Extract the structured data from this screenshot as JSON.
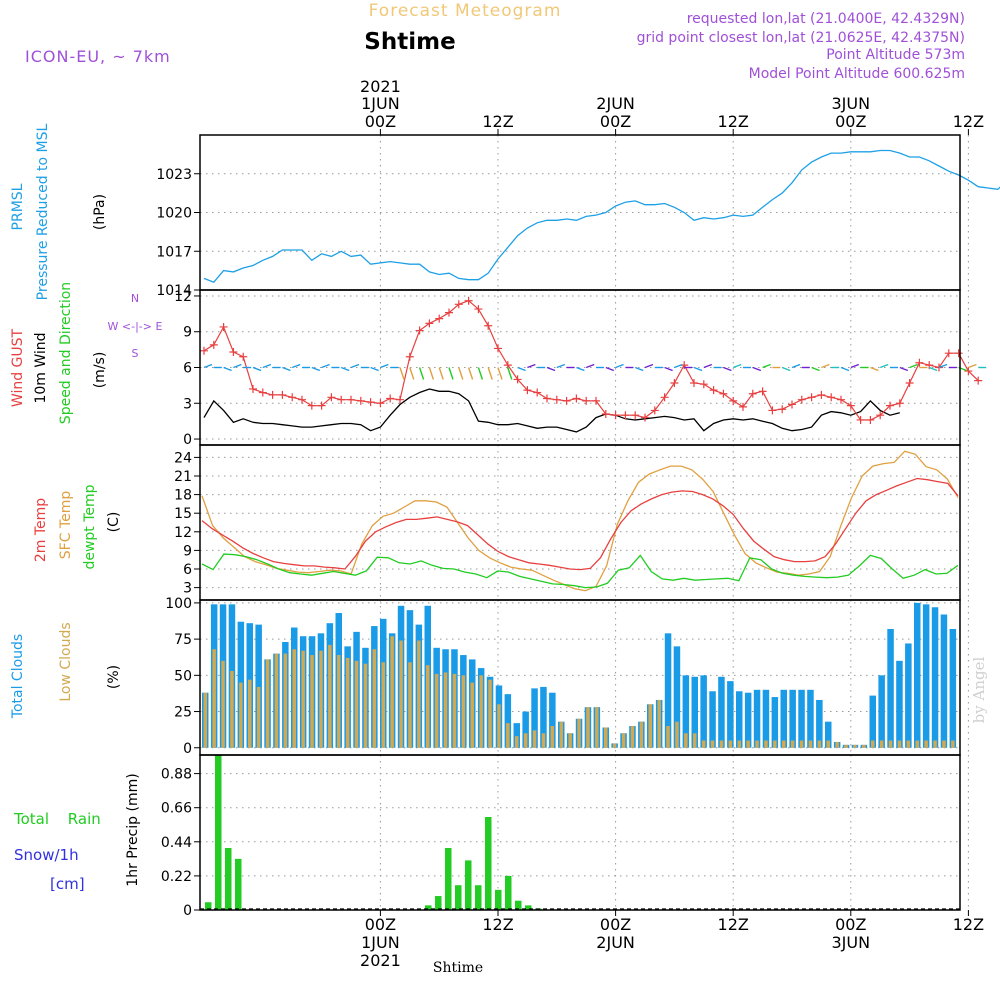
{
  "header": {
    "title_top": "Forecast Meteogram",
    "location": "Shtime",
    "model": "ICON-EU, ~ 7km",
    "requested": "requested lon,lat (21.0400E, 42.4329N)",
    "gridpoint": "grid point closest lon,lat (21.0625E, 42.4375N)",
    "point_alt": "Point Altitude 573m",
    "model_alt": "Model Point Altitude 600.625m",
    "footer": "Shtime",
    "watermark": "by Angel"
  },
  "colors": {
    "pressure": "#1ea0e6",
    "gust": "#e84040",
    "wind": "#000000",
    "sfc": "#e0a040",
    "dewpt": "#22cc22",
    "cloud_total": "#1a9be8",
    "cloud_low": "#d2a850",
    "rain": "#22cc22",
    "snow": "#3030e0",
    "header_purple": "#a050d8",
    "header_orange": "#f0c878"
  },
  "time_axis": {
    "top_labels": [
      {
        "label": "00Z",
        "day": "1JUN",
        "year": "2021",
        "idx": 18
      },
      {
        "label": "12Z",
        "idx": 30
      },
      {
        "label": "00Z",
        "day": "2JUN",
        "idx": 42
      },
      {
        "label": "12Z",
        "idx": 54
      },
      {
        "label": "00Z",
        "day": "3JUN",
        "idx": 66
      },
      {
        "label": "12Z",
        "idx": 78
      }
    ],
    "bottom_labels": [
      {
        "label": "00Z",
        "day": "1JUN",
        "year": "2021",
        "idx": 18
      },
      {
        "label": "12Z",
        "idx": 30
      },
      {
        "label": "00Z",
        "day": "2JUN",
        "idx": 42
      },
      {
        "label": "12Z",
        "idx": 54
      },
      {
        "label": "00Z",
        "day": "3JUN",
        "idx": 66
      },
      {
        "label": "12Z",
        "idx": 78
      }
    ]
  },
  "chart_data": [
    {
      "type": "line",
      "name": "pressure",
      "labels": {
        "title": "PRMSL",
        "subtitle": "Pressure Reduced to MSL",
        "unit": "(hPa)"
      },
      "ylim": [
        1014,
        1026
      ],
      "yticks": [
        1014,
        1017,
        1020,
        1023
      ],
      "values": [
        1014.9,
        1014.6,
        1015.5,
        1015.4,
        1015.7,
        1015.9,
        1016.3,
        1016.6,
        1017.1,
        1017.1,
        1017.1,
        1016.3,
        1016.8,
        1016.6,
        1017.0,
        1016.6,
        1016.7,
        1016.0,
        1016.1,
        1016.2,
        1016.1,
        1016.0,
        1016.0,
        1015.4,
        1015.2,
        1015.3,
        1014.9,
        1014.8,
        1014.8,
        1015.3,
        1016.4,
        1017.3,
        1018.2,
        1018.8,
        1019.2,
        1019.4,
        1019.4,
        1019.5,
        1019.4,
        1019.7,
        1019.8,
        1020.0,
        1020.5,
        1020.8,
        1020.9,
        1020.6,
        1020.6,
        1020.7,
        1020.4,
        1020.0,
        1019.4,
        1019.6,
        1019.5,
        1019.6,
        1019.8,
        1019.7,
        1019.8,
        1020.4,
        1021.0,
        1021.5,
        1022.3,
        1023.3,
        1023.9,
        1024.3,
        1024.6,
        1024.6,
        1024.7,
        1024.7,
        1024.7,
        1024.8,
        1024.8,
        1024.6,
        1024.3,
        1024.3,
        1024.0,
        1023.6,
        1023.2,
        1022.9,
        1022.5,
        1022.0,
        1021.9,
        1021.8,
        1022.5
      ]
    },
    {
      "type": "line",
      "name": "wind",
      "labels": {
        "gust": "Wind GUST",
        "wind": "10m Wind",
        "dir": "Speed and Direction",
        "unit": "(m/s)",
        "compass": "W <-|-> E",
        "compass_n": "N",
        "compass_s": "S"
      },
      "ylim": [
        -0.5,
        12.5
      ],
      "yticks": [
        0,
        3,
        6,
        9,
        12
      ],
      "gust": [
        7.4,
        7.9,
        9.4,
        7.3,
        6.9,
        4.2,
        3.9,
        3.7,
        3.7,
        3.5,
        3.3,
        2.8,
        2.8,
        3.5,
        3.3,
        3.3,
        3.2,
        3.1,
        3.0,
        3.4,
        3.3,
        6.9,
        9.1,
        9.7,
        10.1,
        10.6,
        11.3,
        11.6,
        10.9,
        9.5,
        7.6,
        6.2,
        5.0,
        4.1,
        3.9,
        3.4,
        3.3,
        3.2,
        3.4,
        3.2,
        3.2,
        2.1,
        2.0,
        2.0,
        2.0,
        1.8,
        2.4,
        3.5,
        4.7,
        6.2,
        4.7,
        4.6,
        4.1,
        3.8,
        3.2,
        2.7,
        3.8,
        4.0,
        2.4,
        2.5,
        2.9,
        3.3,
        3.5,
        3.7,
        3.5,
        3.3,
        2.8,
        1.6,
        1.6,
        2.0,
        2.8,
        3.0,
        4.7,
        6.4,
        6.2,
        6.0,
        7.2,
        7.2,
        5.7,
        4.9
      ],
      "speed": [
        1.8,
        3.2,
        2.4,
        1.4,
        1.7,
        1.4,
        1.3,
        1.3,
        1.2,
        1.1,
        1.0,
        1.0,
        1.1,
        1.2,
        1.3,
        1.3,
        1.2,
        0.7,
        1.0,
        2.0,
        2.9,
        3.5,
        3.9,
        4.2,
        4.0,
        4.0,
        3.8,
        3.2,
        1.5,
        1.4,
        1.2,
        1.2,
        1.3,
        1.1,
        0.9,
        1.0,
        1.0,
        0.8,
        0.6,
        1.0,
        1.8,
        2.1,
        2.0,
        1.7,
        1.6,
        1.7,
        1.8,
        1.9,
        1.8,
        1.6,
        1.7,
        0.7,
        1.3,
        1.6,
        1.7,
        1.6,
        1.7,
        1.5,
        1.3,
        0.9,
        0.7,
        0.8,
        1.0,
        2.0,
        2.3,
        2.2,
        2.0,
        2.3,
        3.2,
        2.4,
        2.0,
        2.2
      ]
    },
    {
      "type": "line",
      "name": "temperature",
      "labels": {
        "t2m": "2m Temp",
        "sfc": "SFC Temp",
        "dewpt": "dewpt Temp",
        "unit": "(C)"
      },
      "ylim": [
        1,
        26
      ],
      "yticks": [
        3,
        6,
        9,
        12,
        15,
        18,
        21,
        24
      ],
      "t2m": [
        13.8,
        12.5,
        11.5,
        10.5,
        9.4,
        8.5,
        7.8,
        7.2,
        6.9,
        6.7,
        6.5,
        6.5,
        6.3,
        6.2,
        6.0,
        8.0,
        10.5,
        12.0,
        12.8,
        13.5,
        14.0,
        14.0,
        14.2,
        14.4,
        14.0,
        13.6,
        13.0,
        11.5,
        10.0,
        8.8,
        8.0,
        7.5,
        7.0,
        6.8,
        6.6,
        6.3,
        6.0,
        5.9,
        6.1,
        7.8,
        10.8,
        13.5,
        15.4,
        16.5,
        17.3,
        18.0,
        18.4,
        18.6,
        18.5,
        18.0,
        17.3,
        16.2,
        14.8,
        12.5,
        10.5,
        9.2,
        8.0,
        7.5,
        7.2,
        7.2,
        7.3,
        8.0,
        10.0,
        12.5,
        15.0,
        17.0,
        18.0,
        18.7,
        19.4,
        20.0,
        20.6,
        20.4,
        20.1,
        19.8,
        17.8
      ],
      "sfc": [
        17.8,
        13.0,
        11.0,
        9.5,
        8.0,
        7.2,
        6.7,
        6.1,
        5.8,
        5.5,
        5.4,
        5.6,
        5.8,
        5.7,
        5.2,
        10.0,
        13.0,
        14.5,
        15.0,
        16.0,
        17.0,
        17.0,
        16.8,
        16.0,
        13.5,
        11.0,
        9.0,
        7.8,
        7.0,
        6.3,
        6.0,
        5.8,
        5.0,
        4.2,
        3.5,
        2.8,
        2.5,
        3.2,
        6.5,
        13.2,
        17.0,
        20.0,
        21.3,
        22.0,
        22.6,
        22.6,
        22.0,
        20.5,
        18.5,
        15.0,
        11.5,
        8.5,
        7.0,
        6.2,
        5.5,
        5.3,
        5.0,
        5.2,
        5.6,
        8.0,
        13.0,
        17.5,
        21.0,
        22.6,
        23.0,
        23.2,
        25.0,
        24.5,
        22.5,
        22.0,
        20.5,
        17.5
      ],
      "dewpt": [
        6.8,
        5.9,
        8.4,
        8.3,
        8.0,
        7.5,
        6.8,
        6.0,
        5.4,
        5.2,
        5.0,
        5.3,
        5.6,
        5.3,
        5.0,
        5.7,
        7.9,
        7.8,
        7.0,
        6.8,
        7.3,
        6.6,
        6.1,
        6.0,
        5.5,
        5.2,
        4.6,
        5.7,
        5.5,
        4.8,
        4.4,
        4.0,
        3.6,
        3.5,
        3.3,
        3.0,
        3.1,
        3.7,
        5.8,
        6.2,
        8.2,
        5.6,
        4.4,
        4.2,
        4.5,
        4.2,
        4.3,
        4.4,
        4.5,
        4.1,
        7.8,
        7.5,
        6.0,
        5.3,
        5.0,
        4.8,
        4.7,
        4.6,
        4.7,
        5.0,
        6.5,
        8.2,
        7.7,
        6.0,
        4.5,
        5.0,
        5.9,
        5.2,
        5.3,
        6.6
      ]
    },
    {
      "type": "bar",
      "name": "clouds",
      "labels": {
        "total": "Total Clouds",
        "low": "Low Clouds",
        "unit": "(%)"
      },
      "ylim": [
        -5,
        102
      ],
      "yticks": [
        0,
        25,
        50,
        75,
        100
      ],
      "total": [
        38,
        99,
        99,
        99,
        87,
        86,
        85,
        61,
        65,
        73,
        83,
        77,
        77,
        79,
        86,
        93,
        70,
        80,
        69,
        84,
        89,
        79,
        98,
        95,
        85,
        98,
        69,
        68,
        68,
        64,
        61,
        55,
        49,
        43,
        37,
        17,
        25,
        41,
        42,
        38,
        18,
        10,
        20,
        28,
        28,
        14,
        3,
        10,
        15,
        18,
        30,
        33,
        79,
        70,
        50,
        49,
        50,
        39,
        49,
        46,
        39,
        38,
        40,
        40,
        35,
        40,
        40,
        40,
        40,
        33,
        18,
        4,
        2,
        2,
        2,
        36,
        50,
        82,
        60,
        72,
        100,
        99,
        97,
        92,
        82
      ],
      "low": [
        38,
        68,
        60,
        53,
        45,
        47,
        42,
        65,
        73,
        65,
        68,
        67,
        64,
        67,
        71,
        64,
        62,
        60,
        58,
        68,
        59,
        77,
        74,
        59,
        74,
        57,
        51,
        52,
        51,
        50,
        45,
        50,
        47,
        30,
        17,
        8,
        10,
        12,
        10,
        15,
        18,
        10,
        20,
        28,
        28,
        14,
        3,
        10,
        15,
        18,
        30,
        33,
        15,
        18,
        10,
        10,
        5,
        5,
        5,
        5,
        5,
        5,
        5,
        5,
        5,
        5,
        5,
        5,
        5,
        5,
        5,
        5,
        5,
        5,
        5,
        5,
        5,
        5,
        5,
        5,
        5,
        5,
        5,
        5,
        5
      ]
    },
    {
      "type": "bar",
      "name": "precipitation",
      "labels": {
        "rain": "Total Rain",
        "snow": "Snow/1h",
        "snow_unit": "[cm]",
        "unit": "1hr Precip (mm)"
      },
      "ylim": [
        0,
        1.0
      ],
      "yticks": [
        0,
        0.22,
        0.44,
        0.66,
        0.88
      ],
      "rain": [
        0.05,
        1.0,
        0.4,
        0.33,
        0,
        0,
        0,
        0,
        0,
        0,
        0,
        0,
        0,
        0,
        0,
        0,
        0,
        0,
        0,
        0,
        0,
        0,
        0.03,
        0.09,
        0.4,
        0.16,
        0.32,
        0.16,
        0.6,
        0.13,
        0.22,
        0.06,
        0.03,
        0.01,
        0,
        0,
        0,
        0,
        0,
        0,
        0,
        0,
        0,
        0,
        0,
        0,
        0,
        0,
        0,
        0,
        0,
        0,
        0,
        0,
        0,
        0,
        0,
        0,
        0,
        0,
        0,
        0,
        0,
        0,
        0,
        0,
        0,
        0,
        0,
        0,
        0,
        0,
        0,
        0,
        0,
        0,
        0,
        0,
        0,
        0,
        0,
        0,
        0,
        0
      ]
    }
  ]
}
